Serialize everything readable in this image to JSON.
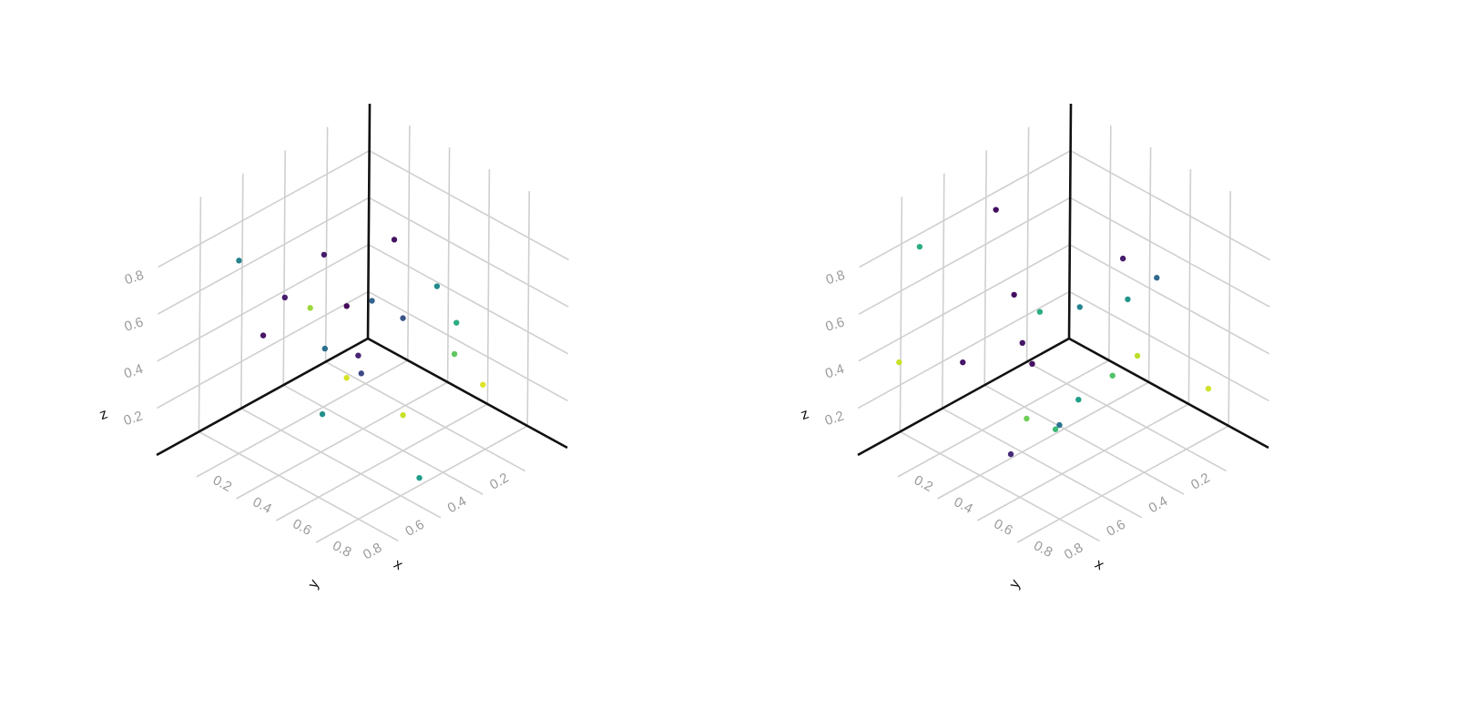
{
  "chart_data": [
    {
      "type": "scatter",
      "projection": "3d",
      "xlabel": "x",
      "ylabel": "y",
      "zlabel": "z",
      "x_ticks": [
        "0.2",
        "0.4",
        "0.6",
        "0.8"
      ],
      "y_ticks": [
        "0.2",
        "0.4",
        "0.6",
        "0.8"
      ],
      "z_ticks": [
        "0.2",
        "0.4",
        "0.6",
        "0.8"
      ],
      "xlim": [
        0,
        1
      ],
      "ylim": [
        0,
        1
      ],
      "zlim": [
        0,
        1
      ],
      "grid": true,
      "colormap": "viridis",
      "points": [
        {
          "x": 0.66,
          "y": 0.08,
          "z": 0.15,
          "c": 0.95
        },
        {
          "x": 0.62,
          "y": 0.17,
          "z": 0.44,
          "c": 0.62
        },
        {
          "x": 0.17,
          "y": 0.04,
          "z": 0.52,
          "c": 0.05
        },
        {
          "x": 0.12,
          "y": 0.73,
          "z": 0.75,
          "c": 0.45
        },
        {
          "x": 0.49,
          "y": 0.14,
          "z": 0.52,
          "c": 0.48
        },
        {
          "x": 0.29,
          "y": 0.48,
          "z": 0.33,
          "c": 0.36
        },
        {
          "x": 0.63,
          "y": 0.43,
          "z": 0.18,
          "c": 0.92
        },
        {
          "x": 0.46,
          "y": 0.54,
          "z": 0.62,
          "c": 0.02
        },
        {
          "x": 0.67,
          "y": 0.62,
          "z": 0.78,
          "c": 0.32
        },
        {
          "x": 0.84,
          "y": 0.55,
          "z": 0.07,
          "c": 0.55
        },
        {
          "x": 0.71,
          "y": 0.51,
          "z": 0.67,
          "c": 0.26
        },
        {
          "x": 0.34,
          "y": 0.72,
          "z": 0.69,
          "c": 0.08
        },
        {
          "x": 0.11,
          "y": 0.38,
          "z": 0.37,
          "c": 0.85
        },
        {
          "x": 0.42,
          "y": 0.43,
          "z": 0.26,
          "c": 0.22
        },
        {
          "x": 0.16,
          "y": 0.65,
          "z": 0.41,
          "c": 0.06
        },
        {
          "x": 0.79,
          "y": 0.34,
          "z": 0.47,
          "c": 0.75
        },
        {
          "x": 0.03,
          "y": 0.24,
          "z": 0.49,
          "c": 0.07
        },
        {
          "x": 0.7,
          "y": 0.88,
          "z": 0.44,
          "c": 0.5
        },
        {
          "x": 0.32,
          "y": 0.35,
          "z": 0.25,
          "c": 0.1
        },
        {
          "x": 0.83,
          "y": 0.89,
          "z": 0.66,
          "c": 0.94
        }
      ]
    },
    {
      "type": "scatter",
      "projection": "3d",
      "xlabel": "x",
      "ylabel": "y",
      "zlabel": "z",
      "x_ticks": [
        "0.2",
        "0.4",
        "0.6",
        "0.8"
      ],
      "y_ticks": [
        "0.2",
        "0.4",
        "0.6",
        "0.8"
      ],
      "z_ticks": [
        "0.2",
        "0.4",
        "0.6",
        "0.8"
      ],
      "xlim": [
        0,
        1
      ],
      "ylim": [
        0,
        1
      ],
      "zlim": [
        0,
        1
      ],
      "grid": true,
      "colormap": "viridis",
      "points": [
        {
          "x": 0.75,
          "y": 0.05,
          "z": 0.16,
          "c": 0.93
        },
        {
          "x": 0.15,
          "y": 0.95,
          "z": 0.44,
          "c": 0.92
        },
        {
          "x": 0.47,
          "y": 0.17,
          "z": 0.47,
          "c": 0.52
        },
        {
          "x": 0.05,
          "y": 0.4,
          "z": 0.77,
          "c": 0.04
        },
        {
          "x": 0.53,
          "y": 0.09,
          "z": 0.55,
          "c": 0.34
        },
        {
          "x": 0.21,
          "y": 0.34,
          "z": 0.38,
          "c": 0.62
        },
        {
          "x": 0.6,
          "y": 0.77,
          "z": 0.32,
          "c": 0.78
        },
        {
          "x": 0.27,
          "y": 0.52,
          "z": 0.57,
          "c": 0.04
        },
        {
          "x": 0.72,
          "y": 0.36,
          "z": 0.44,
          "c": 0.9
        },
        {
          "x": 0.63,
          "y": 0.55,
          "z": 0.7,
          "c": 0.45
        },
        {
          "x": 0.68,
          "y": 0.92,
          "z": 0.28,
          "c": 0.12
        },
        {
          "x": 0.3,
          "y": 0.79,
          "z": 0.43,
          "c": 0.06
        },
        {
          "x": 0.66,
          "y": 0.85,
          "z": 0.71,
          "c": 0.06
        },
        {
          "x": 0.08,
          "y": 0.79,
          "z": 0.82,
          "c": 0.62
        },
        {
          "x": 0.46,
          "y": 0.23,
          "z": 0.17,
          "c": 0.72
        },
        {
          "x": 0.86,
          "y": 0.88,
          "z": 0.45,
          "c": 0.68
        },
        {
          "x": 0.56,
          "y": 0.28,
          "z": 0.74,
          "c": 0.08
        },
        {
          "x": 0.68,
          "y": 0.69,
          "z": 0.29,
          "c": 0.38
        },
        {
          "x": 0.9,
          "y": 0.81,
          "z": 0.56,
          "c": 0.56
        },
        {
          "x": 0.3,
          "y": 0.46,
          "z": 0.26,
          "c": 0.04
        }
      ]
    }
  ]
}
